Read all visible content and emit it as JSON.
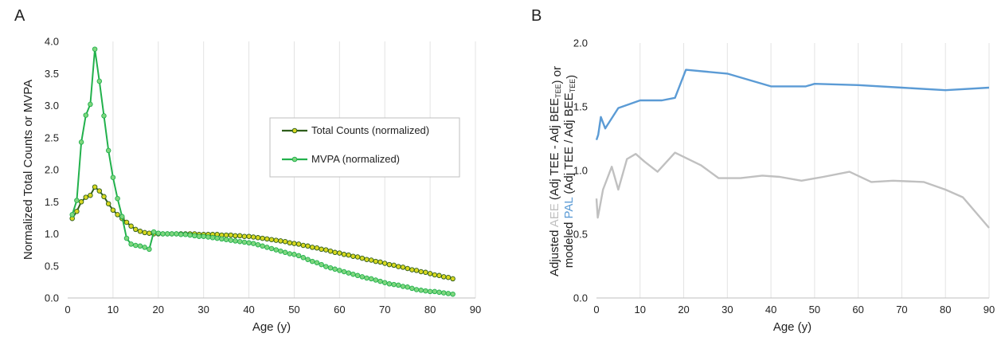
{
  "panels": [
    {
      "letter": "A",
      "chart_data": {
        "type": "line",
        "xlabel": "Age (y)",
        "ylabel": "Normalized Total Counts or MVPA",
        "xlim": [
          0,
          90
        ],
        "ylim": [
          0,
          4.0
        ],
        "x_ticks": [
          "0",
          "10",
          "20",
          "30",
          "40",
          "50",
          "60",
          "70",
          "80",
          "90"
        ],
        "y_ticks": [
          "0.0",
          "0.5",
          "1.0",
          "1.5",
          "2.0",
          "2.5",
          "3.0",
          "3.5",
          "4.0"
        ],
        "grid": "vertical",
        "legend": "center-right",
        "series": [
          {
            "name": "Total Counts (normalized)",
            "line_color": "#2e5d1a",
            "marker_fill": "#d8d820",
            "x": [
              1,
              2,
              3,
              4,
              5,
              6,
              7,
              8,
              9,
              10,
              11,
              12,
              13,
              14,
              15,
              16,
              17,
              18,
              19,
              20,
              21,
              22,
              23,
              24,
              25,
              26,
              27,
              28,
              29,
              30,
              31,
              32,
              33,
              34,
              35,
              36,
              37,
              38,
              39,
              40,
              41,
              42,
              43,
              44,
              45,
              46,
              47,
              48,
              49,
              50,
              51,
              52,
              53,
              54,
              55,
              56,
              57,
              58,
              59,
              60,
              61,
              62,
              63,
              64,
              65,
              66,
              67,
              68,
              69,
              70,
              71,
              72,
              73,
              74,
              75,
              76,
              77,
              78,
              79,
              80,
              81,
              82,
              83,
              84,
              85
            ],
            "y": [
              1.24,
              1.35,
              1.5,
              1.57,
              1.6,
              1.73,
              1.67,
              1.58,
              1.47,
              1.37,
              1.3,
              1.24,
              1.18,
              1.12,
              1.07,
              1.04,
              1.02,
              1.01,
              1.0,
              1.0,
              1.0,
              1.0,
              1.0,
              1.0,
              1.0,
              1.0,
              1.0,
              1.0,
              0.99,
              0.99,
              0.99,
              0.99,
              0.99,
              0.98,
              0.98,
              0.98,
              0.97,
              0.97,
              0.96,
              0.96,
              0.95,
              0.94,
              0.93,
              0.92,
              0.91,
              0.9,
              0.89,
              0.88,
              0.86,
              0.85,
              0.84,
              0.82,
              0.81,
              0.79,
              0.78,
              0.76,
              0.75,
              0.73,
              0.71,
              0.7,
              0.68,
              0.67,
              0.65,
              0.64,
              0.62,
              0.6,
              0.59,
              0.57,
              0.56,
              0.54,
              0.52,
              0.51,
              0.49,
              0.48,
              0.46,
              0.44,
              0.43,
              0.41,
              0.4,
              0.38,
              0.36,
              0.35,
              0.33,
              0.32,
              0.3
            ]
          },
          {
            "name": "MVPA (normalized)",
            "line_color": "#22b14c",
            "marker_fill": "#7fd67f",
            "x": [
              1,
              2,
              3,
              4,
              5,
              6,
              7,
              8,
              9,
              10,
              11,
              12,
              13,
              14,
              15,
              16,
              17,
              18,
              19,
              20,
              21,
              22,
              23,
              24,
              25,
              26,
              27,
              28,
              29,
              30,
              31,
              32,
              33,
              34,
              35,
              36,
              37,
              38,
              39,
              40,
              41,
              42,
              43,
              44,
              45,
              46,
              47,
              48,
              49,
              50,
              51,
              52,
              53,
              54,
              55,
              56,
              57,
              58,
              59,
              60,
              61,
              62,
              63,
              64,
              65,
              66,
              67,
              68,
              69,
              70,
              71,
              72,
              73,
              74,
              75,
              76,
              77,
              78,
              79,
              80,
              81,
              82,
              83,
              84,
              85
            ],
            "y": [
              1.3,
              1.52,
              2.43,
              2.85,
              3.02,
              3.88,
              3.38,
              2.84,
              2.3,
              1.88,
              1.55,
              1.27,
              0.93,
              0.84,
              0.82,
              0.81,
              0.79,
              0.76,
              1.03,
              1.01,
              1.0,
              1.0,
              1.0,
              1.0,
              0.99,
              0.99,
              0.98,
              0.97,
              0.96,
              0.96,
              0.95,
              0.94,
              0.93,
              0.92,
              0.91,
              0.9,
              0.89,
              0.88,
              0.87,
              0.86,
              0.85,
              0.83,
              0.81,
              0.79,
              0.77,
              0.75,
              0.73,
              0.71,
              0.69,
              0.68,
              0.66,
              0.63,
              0.6,
              0.57,
              0.55,
              0.52,
              0.49,
              0.47,
              0.45,
              0.43,
              0.41,
              0.39,
              0.37,
              0.35,
              0.33,
              0.31,
              0.3,
              0.28,
              0.26,
              0.24,
              0.22,
              0.21,
              0.2,
              0.18,
              0.17,
              0.15,
              0.13,
              0.12,
              0.11,
              0.1,
              0.1,
              0.09,
              0.08,
              0.07,
              0.06
            ]
          }
        ]
      }
    },
    {
      "letter": "B",
      "chart_data": {
        "type": "line",
        "xlabel": "Age (y)",
        "ylabel_line1": [
          {
            "text": "Adjusted ",
            "color": "#222222"
          },
          {
            "text": "AEE",
            "color": "#bfbfbf"
          },
          {
            "text": " (Adj TEE - Adj BEE",
            "color": "#222222"
          },
          {
            "text": "TEE",
            "color": "#222222",
            "sub": true
          },
          {
            "text": ") or",
            "color": "#222222"
          }
        ],
        "ylabel_line2": [
          {
            "text": "modeled ",
            "color": "#222222"
          },
          {
            "text": "PAL",
            "color": "#5b9bd5"
          },
          {
            "text": " (Adj TEE / Adj BEE",
            "color": "#222222"
          },
          {
            "text": "TEE",
            "color": "#222222",
            "sub": true
          },
          {
            "text": ")",
            "color": "#222222"
          }
        ],
        "xlim": [
          0,
          90
        ],
        "ylim": [
          0,
          2.0
        ],
        "x_ticks": [
          "0",
          "10",
          "20",
          "30",
          "40",
          "50",
          "60",
          "70",
          "80",
          "90"
        ],
        "y_ticks": [
          "0.0",
          "0.5",
          "1.0",
          "1.5",
          "2.0"
        ],
        "grid": "vertical",
        "series": [
          {
            "name": "AEE",
            "color": "#c0c0c0",
            "x": [
              0,
              0.3,
              0.7,
              1.5,
              3.5,
              5,
              7,
              9,
              11,
              14,
              18,
              21,
              24,
              28,
              33,
              38,
              42,
              47,
              52,
              58,
              63,
              68,
              75,
              80,
              84,
              90
            ],
            "y": [
              0.78,
              0.63,
              0.7,
              0.85,
              1.03,
              0.85,
              1.09,
              1.13,
              1.07,
              0.99,
              1.14,
              1.09,
              1.04,
              0.94,
              0.94,
              0.96,
              0.95,
              0.92,
              0.95,
              0.99,
              0.91,
              0.92,
              0.91,
              0.85,
              0.79,
              0.55
            ]
          },
          {
            "name": "PAL",
            "color": "#5b9bd5",
            "x": [
              0,
              0.4,
              1,
              2,
              5,
              10,
              15,
              18,
              20.5,
              30,
              40,
              48,
              50,
              60,
              70,
              80,
              90
            ],
            "y": [
              1.24,
              1.28,
              1.42,
              1.33,
              1.49,
              1.55,
              1.55,
              1.57,
              1.79,
              1.76,
              1.66,
              1.66,
              1.68,
              1.67,
              1.65,
              1.63,
              1.65
            ]
          }
        ]
      }
    }
  ]
}
